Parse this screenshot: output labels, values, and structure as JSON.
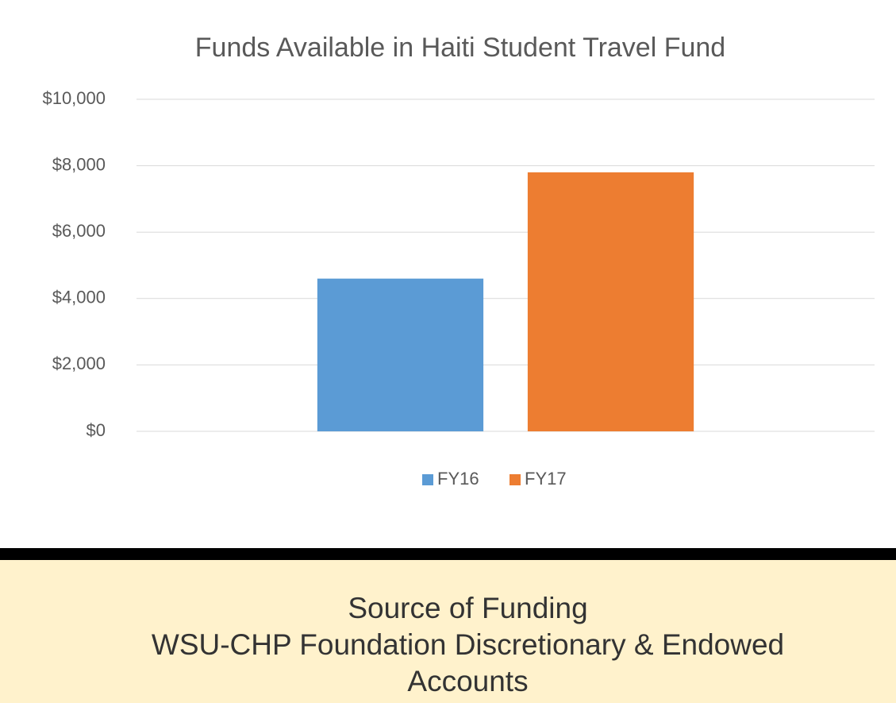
{
  "chart_data": {
    "type": "bar",
    "title": "Funds Available in Haiti Student Travel Fund",
    "categories": [
      null
    ],
    "series": [
      {
        "name": "FY16",
        "color": "#5b9bd5",
        "values": [
          4600
        ]
      },
      {
        "name": "FY17",
        "color": "#ed7d31",
        "values": [
          7800
        ]
      }
    ],
    "ylim": [
      0,
      10000
    ],
    "yticks": [
      {
        "value": 0,
        "label": "$0"
      },
      {
        "value": 2000,
        "label": "$2,000"
      },
      {
        "value": 4000,
        "label": "$4,000"
      },
      {
        "value": 6000,
        "label": "$6,000"
      },
      {
        "value": 8000,
        "label": "$8,000"
      },
      {
        "value": 10000,
        "label": "$10,000"
      }
    ],
    "grid": true,
    "legend": "bottom"
  },
  "footer": {
    "lines": [
      "Source of Funding",
      "WSU-CHP Foundation Discretionary & Endowed",
      "Accounts"
    ]
  }
}
